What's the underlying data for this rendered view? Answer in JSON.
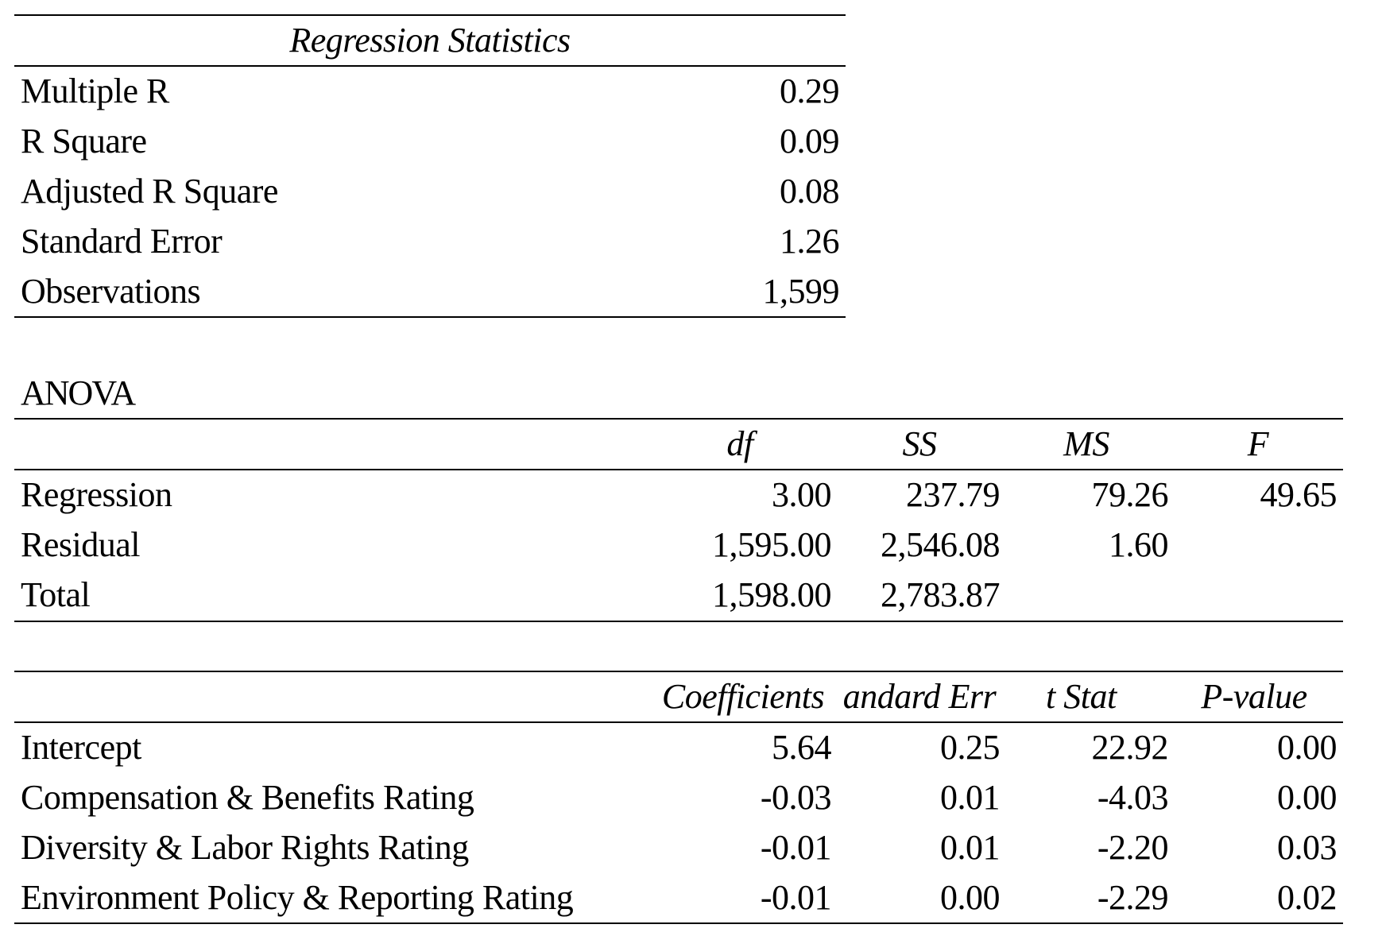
{
  "regression_statistics": {
    "title": "Regression Statistics",
    "rows": [
      {
        "label": "Multiple R",
        "value": "0.29"
      },
      {
        "label": "R Square",
        "value": "0.09"
      },
      {
        "label": "Adjusted R Square",
        "value": "0.08"
      },
      {
        "label": "Standard Error",
        "value": "1.26"
      },
      {
        "label": "Observations",
        "value": "1,599"
      }
    ]
  },
  "anova": {
    "title": "ANOVA",
    "headers": [
      "df",
      "SS",
      "MS",
      "F"
    ],
    "rows": [
      {
        "label": "Regression",
        "df": "3.00",
        "ss": "237.79",
        "ms": "79.26",
        "f": "49.65"
      },
      {
        "label": "Residual",
        "df": "1,595.00",
        "ss": "2,546.08",
        "ms": "1.60",
        "f": ""
      },
      {
        "label": "Total",
        "df": "1,598.00",
        "ss": "2,783.87",
        "ms": "",
        "f": ""
      }
    ]
  },
  "coefficients": {
    "headers": [
      "Coefficients",
      "andard Err",
      "t Stat",
      "P-value"
    ],
    "rows": [
      {
        "label": "Intercept",
        "coef": "5.64",
        "se": "0.25",
        "t": "22.92",
        "p": "0.00"
      },
      {
        "label": "Compensation & Benefits Rating",
        "coef": "-0.03",
        "se": "0.01",
        "t": "-4.03",
        "p": "0.00"
      },
      {
        "label": "Diversity & Labor Rights Rating",
        "coef": "-0.01",
        "se": "0.01",
        "t": "-2.20",
        "p": "0.03"
      },
      {
        "label": "Environment Policy & Reporting Rating",
        "coef": "-0.01",
        "se": "0.00",
        "t": "-2.29",
        "p": "0.02"
      }
    ]
  }
}
